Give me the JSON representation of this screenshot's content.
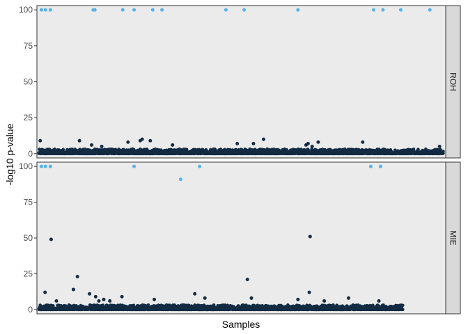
{
  "chart_data": {
    "type": "scatter",
    "xlabel": "Samples",
    "ylabel": "-log10 p-value",
    "ylim": [
      -3,
      103
    ],
    "yticks": [
      0,
      25,
      50,
      75,
      100
    ],
    "grid": false,
    "legend": "none",
    "colors": {
      "significant": "#56B4E9",
      "background": "#132B43"
    },
    "panels": [
      {
        "name": "ROH",
        "n_samples": 1000,
        "highlight": [
          {
            "x": 6,
            "y": 100
          },
          {
            "x": 16,
            "y": 100
          },
          {
            "x": 28,
            "y": 100
          },
          {
            "x": 134,
            "y": 100
          },
          {
            "x": 138,
            "y": 100
          },
          {
            "x": 207,
            "y": 100
          },
          {
            "x": 235,
            "y": 100
          },
          {
            "x": 281,
            "y": 100
          },
          {
            "x": 304,
            "y": 100
          },
          {
            "x": 462,
            "y": 100
          },
          {
            "x": 507,
            "y": 100
          },
          {
            "x": 640,
            "y": 100
          },
          {
            "x": 827,
            "y": 100
          },
          {
            "x": 850,
            "y": 100
          },
          {
            "x": 894,
            "y": 100
          },
          {
            "x": 966,
            "y": 100
          }
        ],
        "outliers": [
          {
            "x": 3,
            "y": 9
          },
          {
            "x": 100,
            "y": 9
          },
          {
            "x": 130,
            "y": 6
          },
          {
            "x": 155,
            "y": 5
          },
          {
            "x": 220,
            "y": 8
          },
          {
            "x": 250,
            "y": 9
          },
          {
            "x": 255,
            "y": 10
          },
          {
            "x": 275,
            "y": 9
          },
          {
            "x": 330,
            "y": 6
          },
          {
            "x": 490,
            "y": 7
          },
          {
            "x": 530,
            "y": 7
          },
          {
            "x": 555,
            "y": 10
          },
          {
            "x": 660,
            "y": 6
          },
          {
            "x": 665,
            "y": 7
          },
          {
            "x": 675,
            "y": 5
          },
          {
            "x": 690,
            "y": 8
          },
          {
            "x": 800,
            "y": 8
          },
          {
            "x": 990,
            "y": 5
          }
        ]
      },
      {
        "name": "MIE",
        "n_samples": 900,
        "highlight": [
          {
            "x": 6,
            "y": 100
          },
          {
            "x": 16,
            "y": 100
          },
          {
            "x": 28,
            "y": 100
          },
          {
            "x": 235,
            "y": 100
          },
          {
            "x": 350,
            "y": 91
          },
          {
            "x": 397,
            "y": 100
          },
          {
            "x": 820,
            "y": 100
          },
          {
            "x": 844,
            "y": 100
          }
        ],
        "outliers": [
          {
            "x": 15,
            "y": 12
          },
          {
            "x": 30,
            "y": 49
          },
          {
            "x": 43,
            "y": 6
          },
          {
            "x": 85,
            "y": 14
          },
          {
            "x": 95,
            "y": 23
          },
          {
            "x": 125,
            "y": 11
          },
          {
            "x": 140,
            "y": 9
          },
          {
            "x": 148,
            "y": 6
          },
          {
            "x": 160,
            "y": 7
          },
          {
            "x": 175,
            "y": 6
          },
          {
            "x": 205,
            "y": 9
          },
          {
            "x": 285,
            "y": 7
          },
          {
            "x": 385,
            "y": 11
          },
          {
            "x": 410,
            "y": 8
          },
          {
            "x": 515,
            "y": 21
          },
          {
            "x": 525,
            "y": 8
          },
          {
            "x": 640,
            "y": 7
          },
          {
            "x": 668,
            "y": 12
          },
          {
            "x": 670,
            "y": 51
          },
          {
            "x": 705,
            "y": 6
          },
          {
            "x": 765,
            "y": 8
          },
          {
            "x": 840,
            "y": 6
          }
        ]
      }
    ]
  }
}
